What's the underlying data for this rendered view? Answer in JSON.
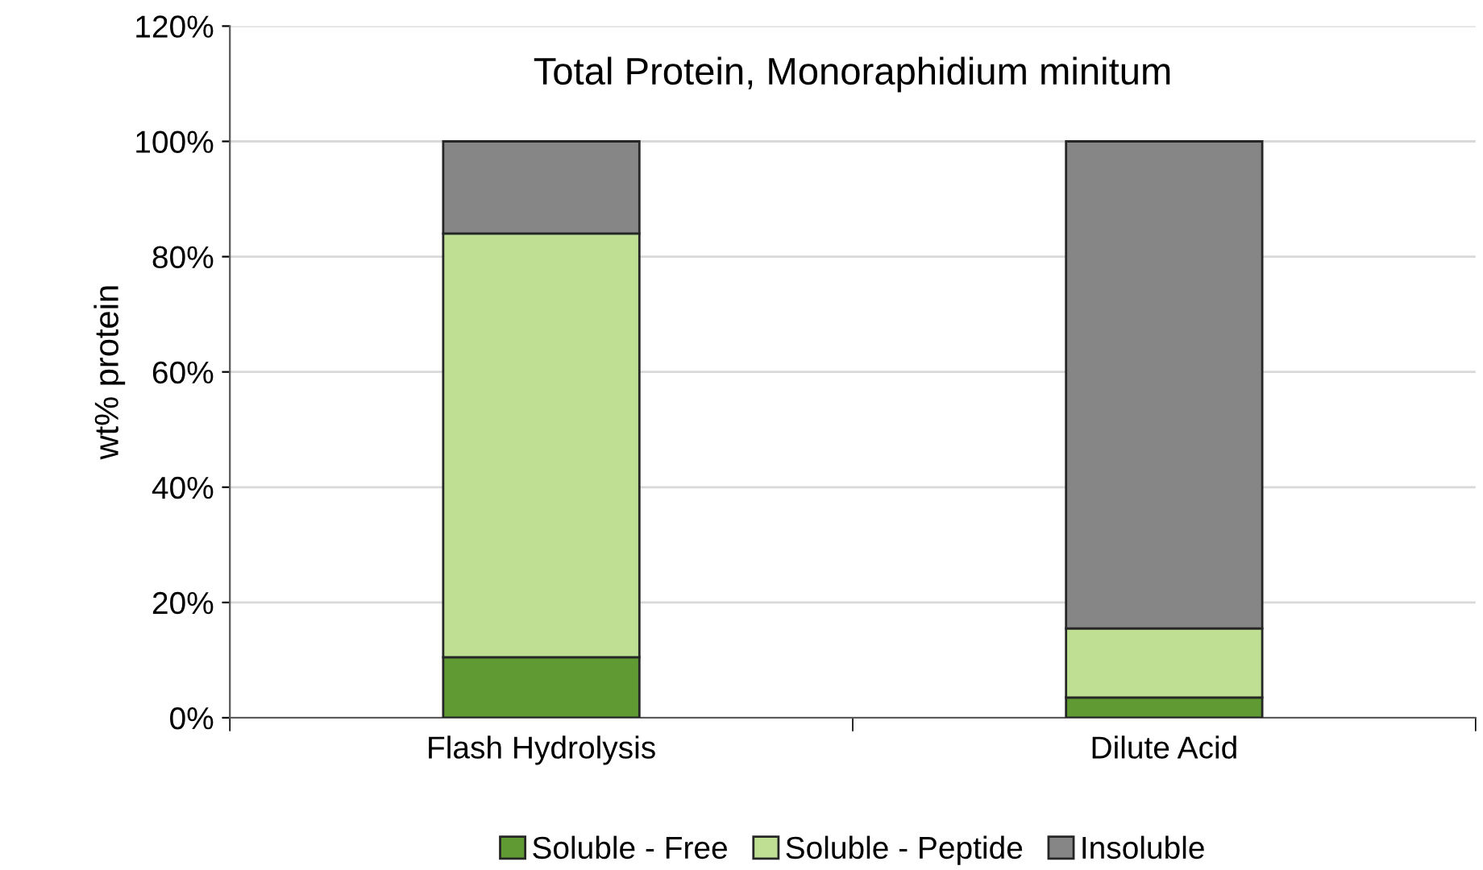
{
  "chart_data": {
    "type": "bar",
    "title": "Total Protein, Monoraphidium minitum",
    "ylabel": "wt% protein",
    "categories": [
      "Flash Hydrolysis",
      "Dilute Acid"
    ],
    "stacked": true,
    "series": [
      {
        "name": "Soluble - Free",
        "color": "#5f9a33",
        "values": [
          10.5,
          3.5
        ]
      },
      {
        "name": "Soluble - Peptide",
        "color": "#bfe093",
        "values": [
          73.5,
          12
        ]
      },
      {
        "name": "Insoluble",
        "color": "#868686",
        "values": [
          16,
          84.5
        ]
      }
    ],
    "ylim": [
      0,
      120
    ],
    "yticks": [
      {
        "value": 0,
        "label": "0%"
      },
      {
        "value": 20,
        "label": "20%"
      },
      {
        "value": 40,
        "label": "40%"
      },
      {
        "value": 60,
        "label": "60%"
      },
      {
        "value": 80,
        "label": "80%"
      },
      {
        "value": 100,
        "label": "100%"
      },
      {
        "value": 120,
        "label": "120%"
      }
    ],
    "grid": "y",
    "legend": "bottom"
  }
}
